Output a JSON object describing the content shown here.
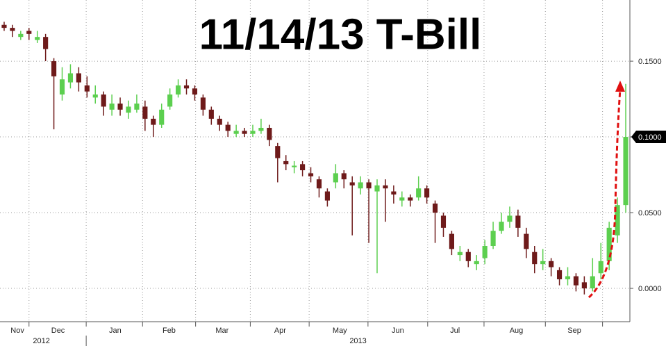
{
  "chart_data": {
    "type": "candlestick",
    "title": "11/14/13 T-Bill",
    "open": [
      0.174,
      0.172,
      0.166,
      0.17,
      0.164,
      0.166,
      0.15,
      0.128,
      0.136,
      0.142,
      0.134,
      0.126,
      0.128,
      0.118,
      0.122,
      0.116,
      0.118,
      0.12,
      0.112,
      0.108,
      0.12,
      0.128,
      0.134,
      0.132,
      0.126,
      0.118,
      0.112,
      0.108,
      0.102,
      0.104,
      0.102,
      0.104,
      0.106,
      0.094,
      0.084,
      0.08,
      0.082,
      0.076,
      0.072,
      0.064,
      0.07,
      0.076,
      0.07,
      0.066,
      0.07,
      0.064,
      0.068,
      0.064,
      0.058,
      0.06,
      0.06,
      0.066,
      0.056,
      0.048,
      0.036,
      0.022,
      0.024,
      0.016,
      0.02,
      0.028,
      0.038,
      0.044,
      0.048,
      0.036,
      0.024,
      0.016,
      0.018,
      0.012,
      0.006,
      0.008,
      0.004,
      0.0,
      0.01,
      0.018,
      0.035,
      0.055
    ],
    "high": [
      0.176,
      0.174,
      0.17,
      0.172,
      0.17,
      0.168,
      0.152,
      0.146,
      0.148,
      0.146,
      0.14,
      0.134,
      0.13,
      0.128,
      0.126,
      0.124,
      0.128,
      0.124,
      0.114,
      0.122,
      0.132,
      0.138,
      0.138,
      0.134,
      0.128,
      0.12,
      0.114,
      0.11,
      0.108,
      0.106,
      0.108,
      0.112,
      0.108,
      0.096,
      0.088,
      0.084,
      0.084,
      0.08,
      0.074,
      0.066,
      0.082,
      0.078,
      0.074,
      0.074,
      0.072,
      0.072,
      0.072,
      0.068,
      0.064,
      0.062,
      0.074,
      0.068,
      0.058,
      0.05,
      0.038,
      0.028,
      0.026,
      0.022,
      0.032,
      0.044,
      0.05,
      0.054,
      0.052,
      0.04,
      0.028,
      0.026,
      0.02,
      0.014,
      0.014,
      0.01,
      0.008,
      0.02,
      0.03,
      0.044,
      0.06,
      0.135
    ],
    "low": [
      0.17,
      0.166,
      0.164,
      0.164,
      0.162,
      0.15,
      0.105,
      0.124,
      0.132,
      0.13,
      0.126,
      0.122,
      0.114,
      0.114,
      0.114,
      0.112,
      0.116,
      0.104,
      0.1,
      0.106,
      0.118,
      0.126,
      0.128,
      0.124,
      0.114,
      0.108,
      0.104,
      0.1,
      0.1,
      0.1,
      0.1,
      0.102,
      0.094,
      0.07,
      0.078,
      0.076,
      0.074,
      0.07,
      0.06,
      0.054,
      0.066,
      0.066,
      0.035,
      0.062,
      0.03,
      0.01,
      0.044,
      0.056,
      0.054,
      0.054,
      0.058,
      0.056,
      0.03,
      0.034,
      0.022,
      0.018,
      0.014,
      0.012,
      0.016,
      0.026,
      0.036,
      0.04,
      0.034,
      0.02,
      0.01,
      0.012,
      0.008,
      0.002,
      0.002,
      -0.002,
      -0.004,
      -0.002,
      0.006,
      0.012,
      0.03,
      0.05
    ],
    "close": [
      0.172,
      0.17,
      0.168,
      0.168,
      0.166,
      0.158,
      0.14,
      0.138,
      0.142,
      0.136,
      0.13,
      0.128,
      0.12,
      0.122,
      0.118,
      0.12,
      0.122,
      0.112,
      0.108,
      0.118,
      0.128,
      0.134,
      0.132,
      0.128,
      0.118,
      0.112,
      0.108,
      0.104,
      0.104,
      0.102,
      0.104,
      0.106,
      0.098,
      0.086,
      0.082,
      0.081,
      0.078,
      0.074,
      0.066,
      0.058,
      0.076,
      0.072,
      0.068,
      0.07,
      0.066,
      0.068,
      0.066,
      0.062,
      0.06,
      0.058,
      0.066,
      0.06,
      0.05,
      0.04,
      0.026,
      0.024,
      0.018,
      0.018,
      0.028,
      0.038,
      0.044,
      0.048,
      0.04,
      0.026,
      0.016,
      0.018,
      0.014,
      0.006,
      0.008,
      0.002,
      0.0,
      0.008,
      0.018,
      0.04,
      0.055,
      0.1
    ],
    "up_color": "#5ccf4f",
    "down_color": "#6e1a1a",
    "xlim": [
      0,
      76
    ],
    "xgrid": [
      3.5,
      10.4,
      17.2,
      23.6,
      30.2,
      37.3,
      44.4,
      51.6,
      58.4,
      65.8,
      72.7
    ],
    "xtick_labels": [
      {
        "value": 2.1,
        "label": "Nov"
      },
      {
        "value": 7.0,
        "label": "Dec"
      },
      {
        "value": 13.9,
        "label": "Jan"
      },
      {
        "value": 20.4,
        "label": "Feb"
      },
      {
        "value": 26.8,
        "label": "Mar"
      },
      {
        "value": 33.8,
        "label": "Apr"
      },
      {
        "value": 41.0,
        "label": "May"
      },
      {
        "value": 48.0,
        "label": "Jun"
      },
      {
        "value": 54.9,
        "label": "Jul"
      },
      {
        "value": 62.3,
        "label": "Aug"
      },
      {
        "value": 69.3,
        "label": "Sep"
      }
    ],
    "year_labels": [
      {
        "value": 5.0,
        "label": "2012"
      },
      {
        "value": 43.2,
        "label": "2013"
      }
    ],
    "year_break": 10.4,
    "ylim": [
      -0.022,
      0.1904
    ],
    "yticks": [
      {
        "value": 0,
        "label": "0.0000"
      },
      {
        "value": 0.05,
        "label": "0.0500"
      },
      {
        "value": 0.1,
        "label": "0.1000"
      },
      {
        "value": 0.15,
        "label": "0.1500"
      }
    ],
    "highlight_ytick": 2,
    "grid": true
  }
}
